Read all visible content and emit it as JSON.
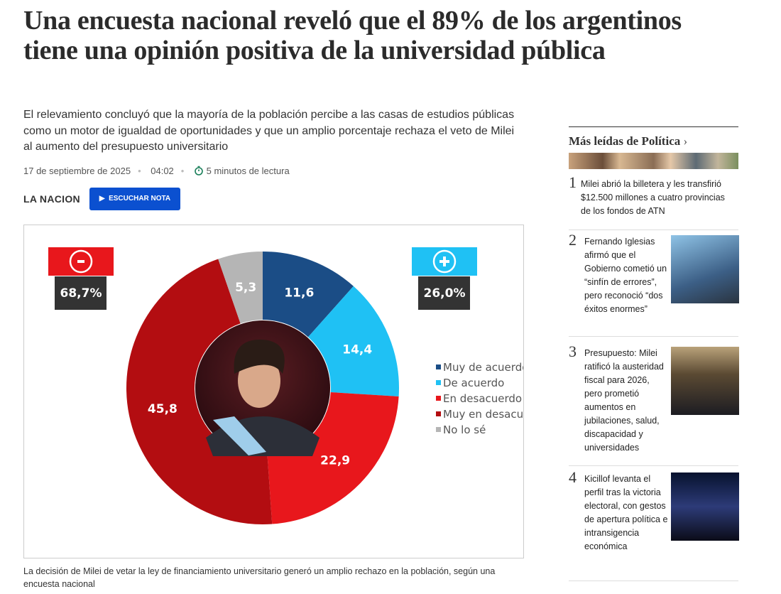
{
  "article": {
    "title": "Una encuesta nacional reveló que el 89% de los argentinos tiene una opinión positiva de la universidad pública",
    "subtitle": "El relevamiento concluyó que la mayoría de la población percibe a las casas de estudios públicas como un motor de igualdad de oportunidades y que un amplio porcentaje rechaza el veto de Milei al aumento del presupuesto universitario",
    "date": "17 de septiembre de 2025",
    "time": "04:02",
    "reading_time": "5 minutos de lectura",
    "brand": "LA NACION",
    "listen_button": "ESCUCHAR NOTA",
    "caption": "La decisión de Milei de vetar la ley de financiamiento universitario generó un amplio rechazo en la población, según una encuesta nacional"
  },
  "chart_data": {
    "type": "donut",
    "categories": [
      "Muy de acuerdo",
      "De acuerdo",
      "En desacuerdo",
      "Muy en desacuerdo",
      "No lo sé"
    ],
    "values": [
      11.6,
      14.4,
      22.9,
      45.8,
      5.3
    ],
    "value_labels": [
      "11,6",
      "14,4",
      "22,9",
      "45,8",
      "5,3"
    ],
    "colors": [
      "#1b4d86",
      "#1fc1f4",
      "#e8171c",
      "#b30d11",
      "#b5b5b5"
    ],
    "totals": [
      {
        "value": 68.7,
        "label": "68,7%",
        "color": "#e8171c"
      },
      {
        "value": 26.0,
        "label": "26,0%",
        "color": "#1fc1f4"
      }
    ]
  },
  "sidebar": {
    "heading": "Más leídas de Política",
    "items": [
      {
        "rank": 1,
        "text": "Milei abrió la billetera y les transfirió $12.500 millones a cuatro provincias de los fondos de ATN"
      },
      {
        "rank": 2,
        "text": "Fernando Iglesias afirmó que el Gobierno cometió un “sinfín de errores”, pero reconoció “dos éxitos enormes”"
      },
      {
        "rank": 3,
        "text": "Presupuesto: Milei ratificó la austeridad fiscal para 2026, pero prometió aumentos en jubilaciones, salud, discapacidad y universidades"
      },
      {
        "rank": 4,
        "text": "Kicillof levanta el perfil tras la victoria electoral, con gestos de apertura política e intransigencia económica"
      }
    ]
  }
}
